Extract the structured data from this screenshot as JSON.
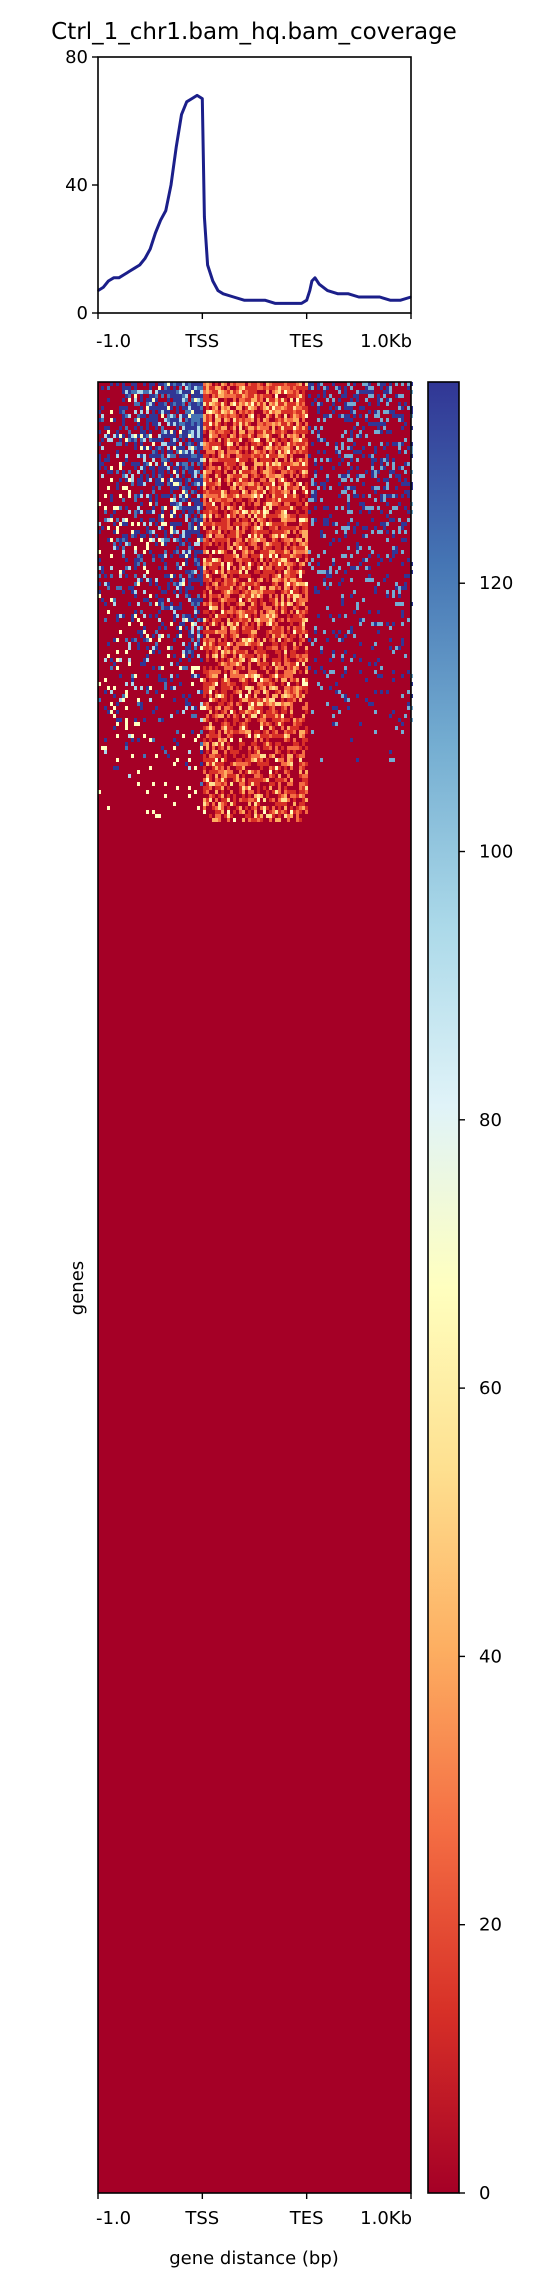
{
  "chart_data": [
    {
      "type": "line",
      "title": "Ctrl_1_chr1.bam_hq.bam_coverage",
      "xlabel": "",
      "ylabel": "",
      "x_ticks": [
        "-1.0",
        "TSS",
        "TES",
        "1.0Kb"
      ],
      "x_tick_positions": [
        0,
        1,
        2,
        3
      ],
      "xlim": [
        0,
        3
      ],
      "y_ticks": [
        "0",
        "40",
        "80"
      ],
      "ylim": [
        0,
        80
      ],
      "grid": false,
      "series": [
        {
          "color": "#1b1f8a",
          "x": [
            0.0,
            0.05,
            0.1,
            0.15,
            0.2,
            0.25,
            0.3,
            0.35,
            0.4,
            0.45,
            0.5,
            0.55,
            0.6,
            0.65,
            0.7,
            0.75,
            0.8,
            0.85,
            0.9,
            0.95,
            1.0,
            1.02,
            1.05,
            1.1,
            1.15,
            1.2,
            1.3,
            1.4,
            1.5,
            1.6,
            1.7,
            1.8,
            1.9,
            1.95,
            2.0,
            2.03,
            2.05,
            2.08,
            2.12,
            2.2,
            2.3,
            2.4,
            2.5,
            2.6,
            2.7,
            2.8,
            2.9,
            3.0
          ],
          "y": [
            7,
            8,
            10,
            11,
            11,
            12,
            13,
            14,
            15,
            17,
            20,
            25,
            29,
            32,
            40,
            52,
            62,
            66,
            67,
            68,
            67,
            30,
            15,
            10,
            7,
            6,
            5,
            4,
            4,
            4,
            3,
            3,
            3,
            3,
            4,
            7,
            10,
            11,
            9,
            7,
            6,
            6,
            5,
            5,
            5,
            4,
            4,
            5
          ]
        }
      ]
    },
    {
      "type": "heatmap",
      "ylabel": "genes",
      "xlabel": "gene distance (bp)",
      "x_ticks": [
        "-1.0",
        "TSS",
        "TES",
        "1.0Kb"
      ],
      "x_tick_positions": [
        0,
        1,
        2,
        3
      ],
      "xlim": [
        0,
        3
      ],
      "rows_with_signal_fraction": 0.245,
      "colormap": "RdYlBu",
      "colorbar": {
        "ticks": [
          "0",
          "20",
          "40",
          "60",
          "80",
          "100",
          "120"
        ],
        "tick_values": [
          0,
          20,
          40,
          60,
          80,
          100,
          120
        ],
        "vmin": 0,
        "vmax": 135,
        "colors": [
          "#a50026",
          "#d73027",
          "#f46d43",
          "#fdae61",
          "#fee090",
          "#ffffbf",
          "#e0f3f8",
          "#abd9e9",
          "#74add1",
          "#4575b4",
          "#313695"
        ]
      }
    }
  ]
}
